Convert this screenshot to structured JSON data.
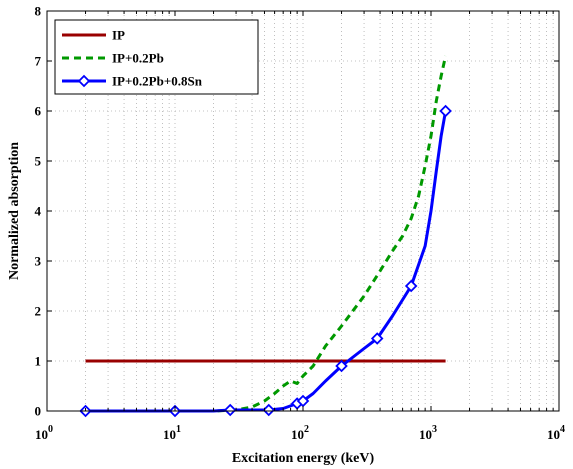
{
  "chart_data": {
    "type": "line",
    "title": "",
    "xlabel": "Excitation energy (keV)",
    "ylabel": "Normalized absorption",
    "xscale": "log",
    "xlim": [
      1,
      10000
    ],
    "ylim": [
      0,
      8
    ],
    "xticks": [
      1,
      10,
      100,
      1000,
      10000
    ],
    "xtick_labels": [
      {
        "base": "10",
        "exp": "0"
      },
      {
        "base": "10",
        "exp": "1"
      },
      {
        "base": "10",
        "exp": "2"
      },
      {
        "base": "10",
        "exp": "3"
      },
      {
        "base": "10",
        "exp": "4"
      }
    ],
    "yticks": [
      0,
      1,
      2,
      3,
      4,
      5,
      6,
      7,
      8
    ],
    "ytick_labels": [
      "0",
      "1",
      "2",
      "3",
      "4",
      "5",
      "6",
      "7",
      "8"
    ],
    "grid": true,
    "legend_position": "top-left",
    "series": [
      {
        "name": "IP",
        "color": "#990000",
        "line_style": "solid",
        "marker": "none",
        "x": [
          2,
          1300
        ],
        "y": [
          1,
          1
        ]
      },
      {
        "name": "IP+0.2Pb",
        "color": "#009900",
        "line_style": "dashed",
        "marker": "none",
        "x": [
          2,
          10,
          20,
          30,
          40,
          50,
          60,
          70,
          80,
          90,
          100,
          120,
          150,
          200,
          300,
          400,
          500,
          600,
          700,
          800,
          900,
          1000,
          1100,
          1200,
          1300
        ],
        "y": [
          0,
          0,
          0,
          0.02,
          0.08,
          0.2,
          0.35,
          0.5,
          0.6,
          0.55,
          0.7,
          0.9,
          1.3,
          1.7,
          2.3,
          2.8,
          3.2,
          3.5,
          3.85,
          4.3,
          4.9,
          5.5,
          6.2,
          6.7,
          7.1
        ]
      },
      {
        "name": "IP+0.2Pb+0.8Sn",
        "color": "#0000ff",
        "line_style": "solid",
        "marker": "diamond",
        "x": [
          2,
          5,
          10,
          20,
          27,
          40,
          54,
          70,
          90,
          100,
          120,
          150,
          200,
          300,
          380,
          500,
          700,
          900,
          1000,
          1100,
          1200,
          1300
        ],
        "y": [
          0,
          0,
          0,
          0,
          0.02,
          0.02,
          0.02,
          0.05,
          0.15,
          0.2,
          0.35,
          0.6,
          0.9,
          1.25,
          1.45,
          1.9,
          2.5,
          3.3,
          4.0,
          4.8,
          5.5,
          6.0
        ],
        "marker_x": [
          2,
          10,
          27,
          54,
          90,
          100,
          200,
          380,
          700,
          1300
        ],
        "marker_y": [
          0,
          0,
          0.02,
          0.02,
          0.15,
          0.2,
          0.9,
          1.45,
          2.5,
          6.0
        ]
      }
    ]
  }
}
